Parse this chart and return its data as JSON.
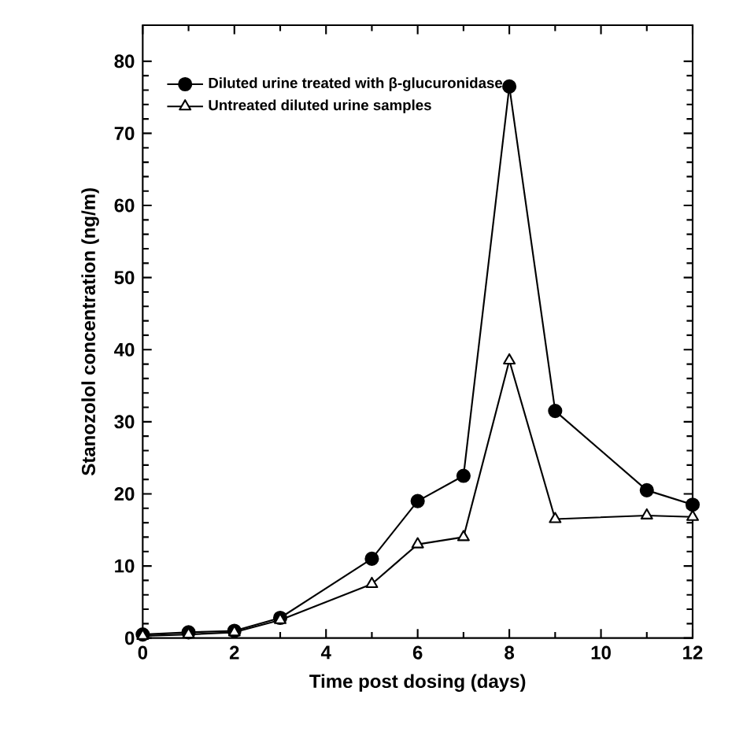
{
  "chart_data": {
    "type": "line",
    "xlabel": "Time post dosing (days)",
    "ylabel": "Stanozolol concentration (ng/m)",
    "x": [
      0,
      1,
      2,
      3,
      5,
      6,
      7,
      8,
      9,
      11,
      12
    ],
    "series": [
      {
        "name": "Diluted urine treated with β-glucuronidase",
        "color": "#000000",
        "marker": "circle",
        "values": [
          0.5,
          0.8,
          1,
          2.8,
          11,
          19,
          22.5,
          76.5,
          31.5,
          20.5,
          18.5
        ]
      },
      {
        "name": "Untreated diluted urine samples",
        "color": "#000000",
        "marker": "triangle",
        "values": [
          0.3,
          0.5,
          0.8,
          2.5,
          7.5,
          13,
          14,
          38.5,
          16.5,
          17,
          16.8
        ]
      }
    ],
    "xlim": [
      0,
      12
    ],
    "ylim": [
      0,
      85
    ],
    "xticks": [
      0,
      2,
      4,
      6,
      8,
      10,
      12
    ],
    "yticks": [
      0,
      10,
      20,
      30,
      40,
      50,
      60,
      70,
      80
    ],
    "legend": "top left",
    "line_style": "solid"
  }
}
